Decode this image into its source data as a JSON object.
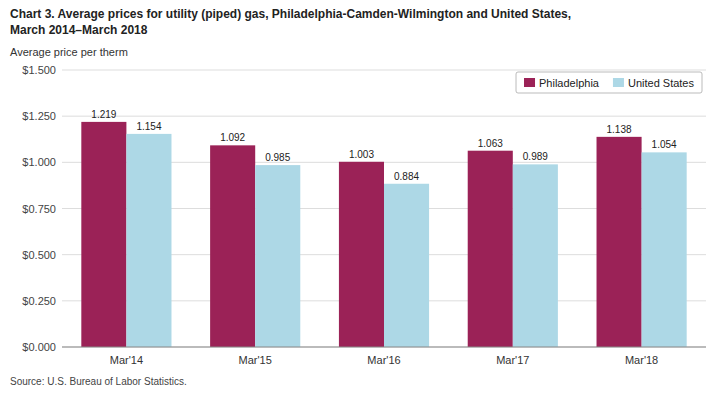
{
  "chart_data": {
    "type": "bar",
    "title": "Chart 3. Average prices for utility (piped) gas, Philadelphia-Camden-Wilmington and United States,",
    "subtitle": "March 2014–March 2018",
    "y_label": "Average price per therm",
    "annotations": [
      "Source: U.S. Bureau of Labor Statistics."
    ],
    "categories": [
      "Mar'14",
      "Mar'15",
      "Mar'16",
      "Mar'17",
      "Mar'18"
    ],
    "series": [
      {
        "name": "Philadelphia",
        "color": "#9B2257",
        "values": [
          1.219,
          1.092,
          1.003,
          1.063,
          1.138
        ]
      },
      {
        "name": "United States",
        "color": "#ADD8E6",
        "values": [
          1.154,
          0.985,
          0.884,
          0.989,
          1.054
        ]
      }
    ],
    "ylim": [
      0,
      1.5
    ],
    "yticks": [
      {
        "value": 0.0,
        "label": "$0.000"
      },
      {
        "value": 0.25,
        "label": "$0.250"
      },
      {
        "value": 0.5,
        "label": "$0.500"
      },
      {
        "value": 0.75,
        "label": "$0.750"
      },
      {
        "value": 1.0,
        "label": "$1.000"
      },
      {
        "value": 1.25,
        "label": "$1.250"
      },
      {
        "value": 1.5,
        "label": "$1.500"
      }
    ],
    "grid": true,
    "legend": "upper right",
    "data_labels": true
  }
}
